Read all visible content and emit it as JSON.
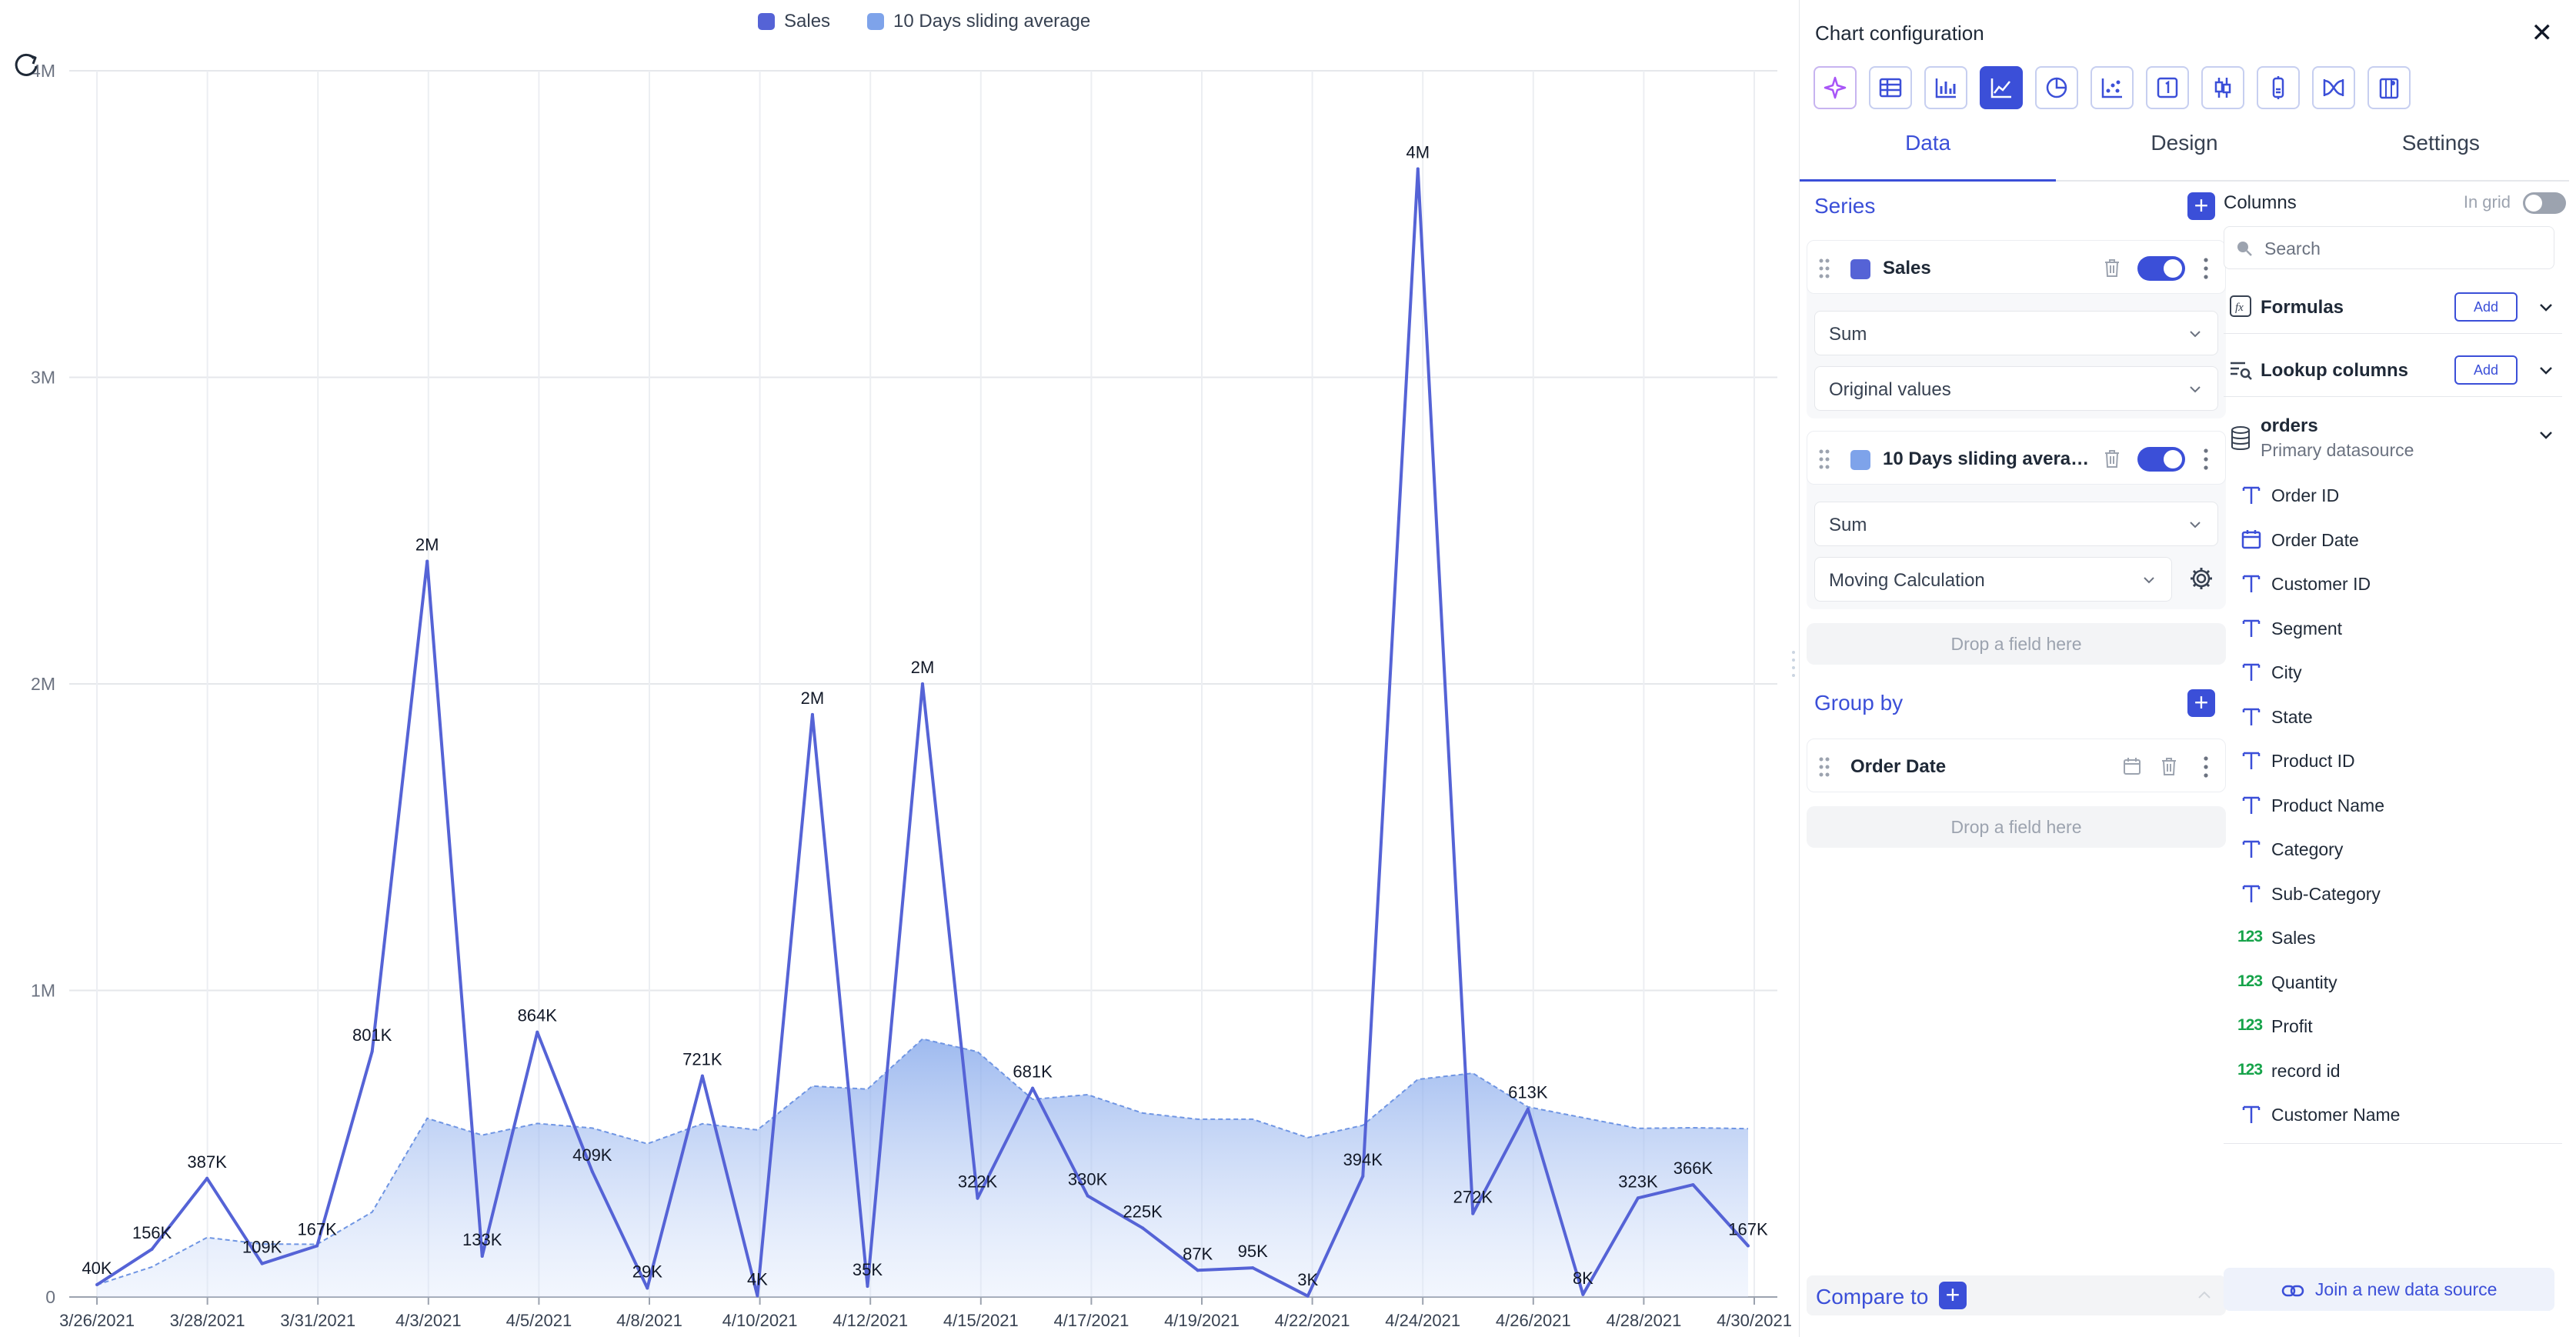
{
  "chart_data": {
    "type": "line",
    "title": "",
    "xlabel": "",
    "ylabel": "",
    "ylim": [
      0,
      4000000
    ],
    "y_ticks": [
      {
        "value": 0,
        "label": "0"
      },
      {
        "value": 1000000,
        "label": "1M"
      },
      {
        "value": 2000000,
        "label": "2M"
      },
      {
        "value": 3000000,
        "label": "3M"
      },
      {
        "value": 4000000,
        "label": "4M"
      }
    ],
    "x_tick_labels": [
      "3/26/2021",
      "3/28/2021",
      "3/31/2021",
      "4/3/2021",
      "4/5/2021",
      "4/8/2021",
      "4/10/2021",
      "4/12/2021",
      "4/15/2021",
      "4/17/2021",
      "4/19/2021",
      "4/22/2021",
      "4/24/2021",
      "4/26/2021",
      "4/28/2021",
      "4/30/2021"
    ],
    "series": [
      {
        "name": "Sales",
        "kind": "line",
        "color": "#5563d6",
        "values": [
          40000,
          156000,
          387000,
          109000,
          167000,
          801000,
          2400000,
          133000,
          864000,
          409000,
          29000,
          721000,
          4000,
          1900000,
          35000,
          2000000,
          322000,
          681000,
          330000,
          225000,
          87000,
          95000,
          3000,
          394000,
          3680000,
          272000,
          613000,
          8000,
          323000,
          366000,
          167000
        ],
        "labels": [
          "40K",
          "156K",
          "387K",
          "109K",
          "167K",
          "801K",
          "2M",
          "133K",
          "864K",
          "409K",
          "29K",
          "721K",
          "4K",
          "2M",
          "35K",
          "2M",
          "322K",
          "681K",
          "330K",
          "225K",
          "87K",
          "95K",
          "3K",
          "394K",
          "4M",
          "272K",
          "613K",
          "8K",
          "323K",
          "366K",
          "167K"
        ]
      },
      {
        "name": "10 Days sliding average",
        "kind": "area",
        "color": "#7ea3ea",
        "values": [
          40000,
          98000,
          194000,
          173000,
          172000,
          277000,
          583000,
          528000,
          566000,
          551000,
          500000,
          565000,
          545000,
          688000,
          678000,
          842000,
          800000,
          645000,
          660000,
          600000,
          580000,
          580000,
          520000,
          560000,
          710000,
          730000,
          620000,
          585000,
          550000,
          552000,
          549000
        ]
      }
    ],
    "legend_position": "top-center"
  },
  "legend": {
    "items": [
      {
        "label": "Sales",
        "color": "#5563d6"
      },
      {
        "label": "10 Days sliding average",
        "color": "#7ea3ea"
      }
    ]
  },
  "panel": {
    "title": "Chart configuration",
    "tabs": [
      "Data",
      "Design",
      "Settings"
    ],
    "series_title": "Series",
    "series": [
      {
        "name": "Sales",
        "color": "#5563d6",
        "aggregation": "Sum",
        "calculation": "Original values"
      },
      {
        "name": "10 Days sliding avera…",
        "color": "#7ea3ea",
        "aggregation": "Sum",
        "calculation": "Moving Calculation"
      }
    ],
    "drop_field": "Drop a field here",
    "group_by_title": "Group by",
    "group_by_field": "Order Date",
    "compare_to": "Compare to",
    "columns_title": "Columns",
    "in_grid": "In grid",
    "search_placeholder": "Search",
    "formulas": "Formulas",
    "lookup_columns": "Lookup columns",
    "add": "Add",
    "datasource_name": "orders",
    "datasource_sub": "Primary datasource",
    "fields": [
      {
        "name": "Order ID",
        "type": "text"
      },
      {
        "name": "Order Date",
        "type": "date"
      },
      {
        "name": "Customer ID",
        "type": "text"
      },
      {
        "name": "Segment",
        "type": "text"
      },
      {
        "name": "City",
        "type": "text"
      },
      {
        "name": "State",
        "type": "text"
      },
      {
        "name": "Product ID",
        "type": "text"
      },
      {
        "name": "Product Name",
        "type": "text"
      },
      {
        "name": "Category",
        "type": "text"
      },
      {
        "name": "Sub-Category",
        "type": "text"
      },
      {
        "name": "Sales",
        "type": "number"
      },
      {
        "name": "Quantity",
        "type": "number"
      },
      {
        "name": "Profit",
        "type": "number"
      },
      {
        "name": "record id",
        "type": "number"
      },
      {
        "name": "Customer Name",
        "type": "text"
      }
    ],
    "join_label": "Join a new data source",
    "accent": "#3b4fd8"
  }
}
